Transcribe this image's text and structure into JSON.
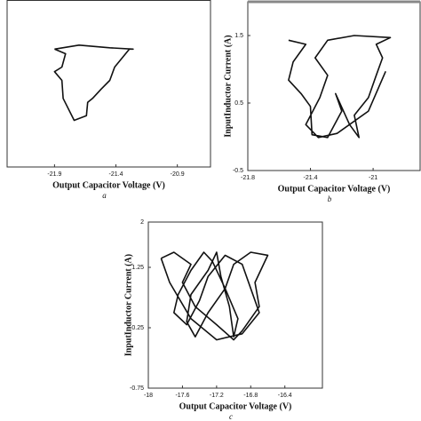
{
  "chart_data": [
    {
      "type": "line",
      "x_label": "Output Capacitor Voltage (V)",
      "caption": "a",
      "x": [
        -21.9,
        -21.81,
        -21.84,
        -21.9,
        -21.84,
        -21.83,
        -21.74,
        -21.64,
        -21.63,
        -21.59,
        -21.52,
        -21.45,
        -21.41,
        -21.29,
        -21.26,
        -21.45,
        -21.7,
        -21.9
      ],
      "series": [
        {
          "color": "#111111",
          "values": [
            1.27,
            1.2,
            1.0,
            0.93,
            0.8,
            0.53,
            0.2,
            0.27,
            0.47,
            0.53,
            0.67,
            0.8,
            1.0,
            1.27,
            1.27,
            1.29,
            1.33,
            1.27
          ]
        }
      ],
      "xlim": [
        -22.286,
        -20.63
      ],
      "ylim": [
        -0.5,
        2
      ],
      "xticks": [
        -21.9,
        -21.4,
        -20.9
      ]
    },
    {
      "type": "line",
      "x_label": "Output Capacitor Voltage (V)",
      "y_label": "InputInductor Current (A)",
      "caption": "b",
      "x": [
        -21.54,
        -21.43,
        -21.51,
        -21.54,
        -21.46,
        -21.4,
        -21.39,
        -21.29,
        -21.2,
        -21.24,
        -21.15,
        -21.09,
        -21.12,
        -21.03,
        -20.98,
        -20.94,
        -20.98,
        -20.89,
        -21.12,
        -21.29,
        -21.37,
        -21.29,
        -21.34,
        -21.43,
        -21.35,
        -21.23,
        -21.03,
        -20.92
      ],
      "series": [
        {
          "color": "#111111",
          "values": [
            1.43,
            1.37,
            1.11,
            0.84,
            0.64,
            0.45,
            0.03,
            -0.01,
            0.38,
            0.64,
            0.18,
            -0.01,
            0.32,
            0.58,
            0.91,
            1.17,
            1.37,
            1.47,
            1.5,
            1.43,
            1.17,
            0.91,
            0.58,
            0.18,
            -0.01,
            0.05,
            0.38,
            0.97
          ]
        }
      ],
      "xlim": [
        -21.8,
        -20.7
      ],
      "ylim": [
        -0.5,
        2
      ],
      "xticks": [
        -21.8,
        -21.4,
        -21
      ],
      "yticks": [
        -0.5,
        0.5,
        1.5
      ]
    },
    {
      "type": "line",
      "x_label": "Output Capacitor Voltage (V)",
      "y_label": "InputInductor Current (A)",
      "caption": "c",
      "x": [
        -17.85,
        -17.7,
        -17.5,
        -17.6,
        -17.45,
        -17.2,
        -17.0,
        -16.9,
        -16.7,
        -16.75,
        -16.6,
        -16.8,
        -17.0,
        -17.1,
        -17.3,
        -17.45,
        -17.55,
        -17.5,
        -17.3,
        -17.2,
        -17.15,
        -17.05,
        -17.0,
        -16.95,
        -17.1,
        -17.25,
        -17.35,
        -17.5,
        -17.65,
        -17.7,
        -17.55,
        -17.4,
        -17.3,
        -17.1,
        -16.9,
        -16.8,
        -16.7,
        -16.9,
        -17.2,
        -17.5,
        -17.75,
        -17.85
      ],
      "series": [
        {
          "color": "#111111",
          "values": [
            1.4,
            1.5,
            1.3,
            1.0,
            0.6,
            0.3,
            0.05,
            0.2,
            0.6,
            1.0,
            1.45,
            1.5,
            1.3,
            0.9,
            0.5,
            0.1,
            0.35,
            0.8,
            1.2,
            1.5,
            1.1,
            0.6,
            0.1,
            0.4,
            0.9,
            1.35,
            1.5,
            1.2,
            0.8,
            0.5,
            0.3,
            0.7,
            1.1,
            1.45,
            1.3,
            0.9,
            0.5,
            0.15,
            0.05,
            0.4,
            1.0,
            1.4
          ]
        }
      ],
      "xlim": [
        -18,
        -15.96
      ],
      "ylim": [
        -0.75,
        2
      ],
      "xticks": [
        -18,
        -17.6,
        -17.2,
        -16.8,
        -16.4
      ],
      "yticks": [
        -0.75,
        0.25,
        1.25,
        2
      ]
    }
  ]
}
